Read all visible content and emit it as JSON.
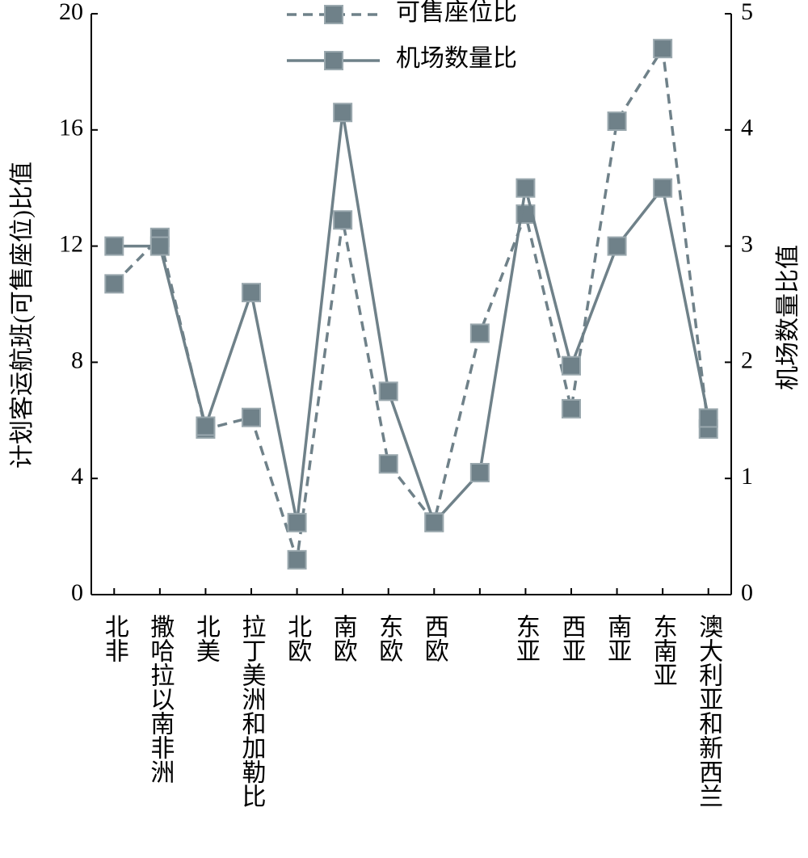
{
  "chart_data": {
    "type": "line",
    "categories": [
      "北非",
      "撒哈拉以南非洲",
      "北美",
      "拉丁美洲和加勒比",
      "北欧",
      "南欧",
      "东欧",
      "西欧",
      null,
      "东亚",
      "西亚",
      "南亚",
      "东南亚",
      "澳大利亚和新西兰"
    ],
    "series": [
      {
        "name": "可售座位比",
        "color": "#6f8189",
        "dashed": true,
        "values": [
          10.7,
          12.3,
          5.7,
          6.1,
          1.2,
          12.9,
          4.5,
          2.5,
          9.0,
          13.1,
          6.4,
          16.3,
          18.8,
          5.7
        ]
      },
      {
        "name": "机场数量比",
        "color": "#6f8189",
        "dashed": false,
        "axis": "y2",
        "values": [
          3.0,
          3.0,
          1.45,
          2.6,
          0.62,
          4.15,
          1.75,
          0.62,
          1.05,
          3.5,
          1.97,
          3.0,
          3.5,
          1.52
        ]
      }
    ],
    "ylabel": "计划客运航班(可售座位)比值",
    "y2label": "机场数量比值",
    "ylim": [
      0,
      20
    ],
    "yticks": [
      0,
      4,
      8,
      12,
      16,
      20
    ],
    "y2lim": [
      0,
      5
    ],
    "y2ticks": [
      0,
      1,
      2,
      3,
      4,
      5
    ],
    "legend": "top"
  }
}
